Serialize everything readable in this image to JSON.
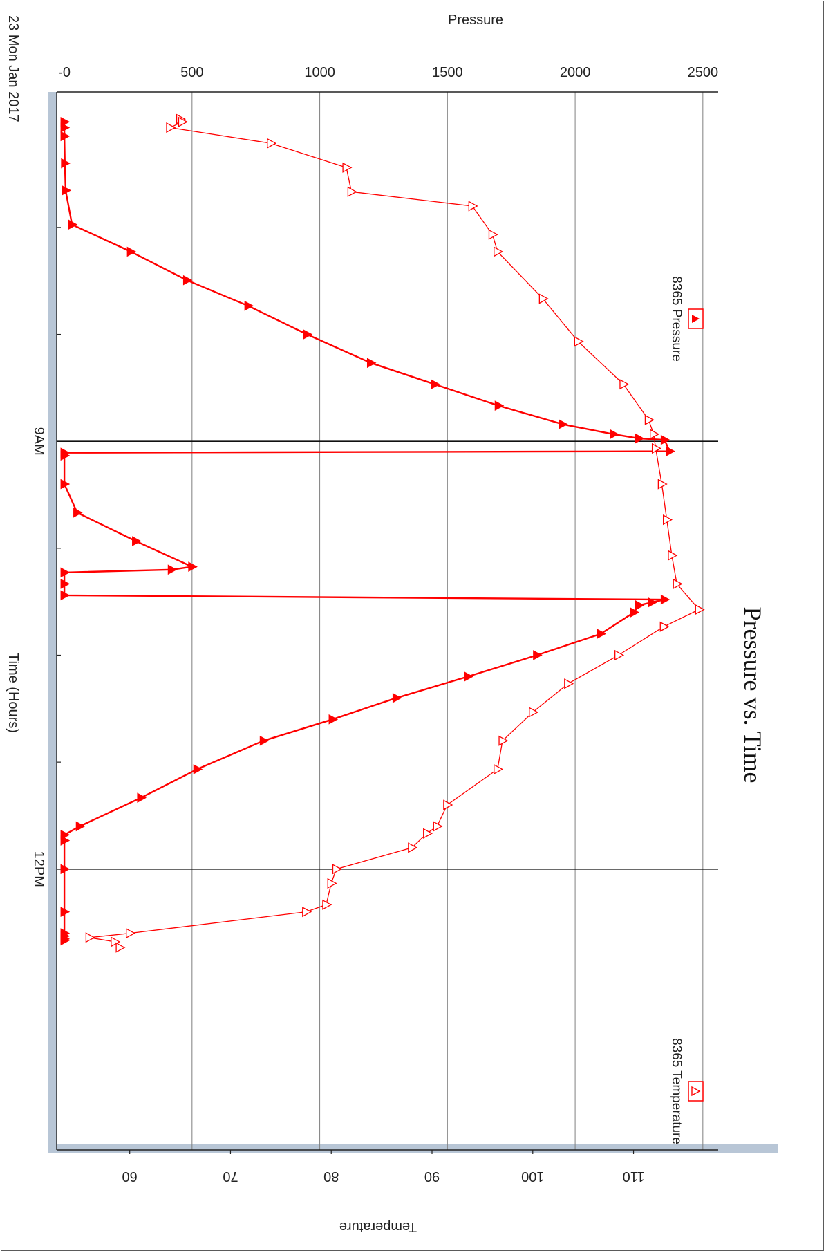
{
  "chart_data": {
    "type": "line",
    "title": "Pressure vs. Time",
    "xlabel": "Time (Hours)",
    "ylabel": "Pressure",
    "y2label": "Temperature",
    "date_label": "23 Mon Jan 2017",
    "x_ticks": [
      {
        "label": "9AM",
        "value": 9.0
      },
      {
        "label": "12PM",
        "value": 12.0
      }
    ],
    "xlim": [
      6.55,
      13.97
    ],
    "ylim": [
      -30,
      2560
    ],
    "y2lim": [
      52.75,
      118.4
    ],
    "y_ticks": [
      "-0",
      "500",
      "1000",
      "1500",
      "2000",
      "2500"
    ],
    "y2_ticks": [
      "60",
      "70",
      "80",
      "90",
      "100",
      "110"
    ],
    "grid": true,
    "legend_position": "top",
    "colors": {
      "series": "#ff0000",
      "grid": "#808080",
      "axis": "#222222",
      "band": "#b8c6d6"
    },
    "series": [
      {
        "name": "8365 Pressure",
        "axis": "left",
        "marker": "filled-triangle",
        "x": [
          6.76,
          6.8,
          6.86,
          7.05,
          7.24,
          7.48,
          7.67,
          7.87,
          8.05,
          8.25,
          8.45,
          8.6,
          8.75,
          8.88,
          8.95,
          8.98,
          8.99,
          9.07,
          9.08,
          9.1,
          9.3,
          9.5,
          9.7,
          9.88,
          9.9,
          9.92,
          10.0,
          10.08,
          10.11,
          10.13,
          10.15,
          10.2,
          10.35,
          10.5,
          10.65,
          10.8,
          10.95,
          11.1,
          11.3,
          11.5,
          11.7,
          11.76,
          11.8,
          12.0,
          12.3,
          12.45,
          12.47,
          12.49,
          12.5
        ],
        "y": [
          0,
          0,
          0,
          2,
          5,
          30,
          260,
          480,
          720,
          950,
          1200,
          1450,
          1700,
          1950,
          2150,
          2250,
          2350,
          2370,
          0,
          0,
          0,
          50,
          280,
          500,
          420,
          0,
          0,
          0,
          2350,
          2300,
          2250,
          2230,
          2100,
          1850,
          1580,
          1300,
          1050,
          780,
          520,
          300,
          60,
          0,
          0,
          0,
          0,
          0,
          0,
          0,
          0
        ]
      },
      {
        "name": "8365 Temperature",
        "axis": "right",
        "marker": "open-triangle",
        "x": [
          6.74,
          6.76,
          6.8,
          6.91,
          7.08,
          7.25,
          7.35,
          7.55,
          7.67,
          8.0,
          8.3,
          8.6,
          8.85,
          8.95,
          9.05,
          9.3,
          9.55,
          9.8,
          10.0,
          10.18,
          10.3,
          10.5,
          10.7,
          10.9,
          11.1,
          11.3,
          11.55,
          11.7,
          11.75,
          11.85,
          12.0,
          12.1,
          12.25,
          12.3,
          12.45,
          12.48,
          12.51,
          12.55
        ],
        "y": [
          65,
          65.2,
          64,
          74,
          81.5,
          82,
          94,
          96,
          96.5,
          101,
          104.5,
          109,
          111.5,
          112,
          112.2,
          112.8,
          113.3,
          113.8,
          114.3,
          116.5,
          113,
          108.5,
          103.5,
          100,
          97,
          96.5,
          91.5,
          90.5,
          89.5,
          88,
          80.5,
          80,
          79.5,
          77.5,
          60,
          56,
          58.5,
          59
        ]
      }
    ]
  }
}
